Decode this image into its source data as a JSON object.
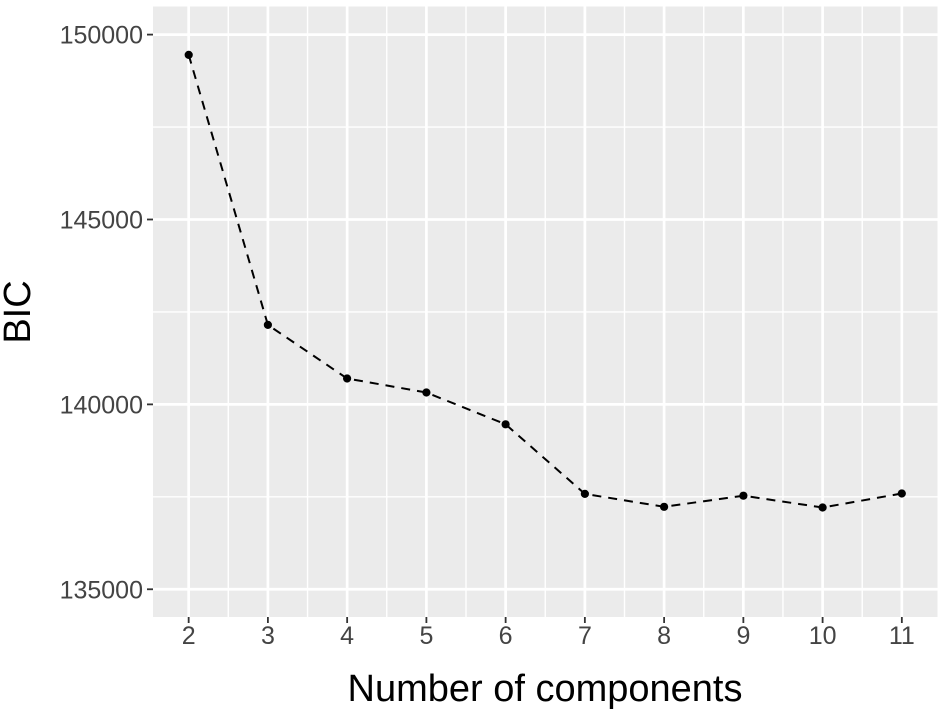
{
  "figure": {
    "background_color": "#FFFFFF",
    "panel_background_color": "#EBEBEB",
    "grid_major_color": "#FFFFFF",
    "grid_minor_color": "#FFFFFF",
    "tick_mark_color": "#333333",
    "tick_label_color": "#444444",
    "axis_title_color": "#000000",
    "line_color": "#000000",
    "point_color": "#000000"
  },
  "chart_data": {
    "type": "line",
    "title": "",
    "xlabel": "Number of components",
    "ylabel": "BIC",
    "x": [
      2,
      3,
      4,
      5,
      6,
      7,
      8,
      9,
      10,
      11
    ],
    "series": [
      {
        "name": "BIC",
        "values": [
          149450,
          142150,
          140700,
          140320,
          139460,
          137580,
          137230,
          137530,
          137210,
          137590
        ]
      }
    ],
    "xticks": [
      2,
      3,
      4,
      5,
      6,
      7,
      8,
      9,
      10,
      11
    ],
    "yticks": [
      135000,
      140000,
      145000,
      150000
    ],
    "xticks_minor": [
      2.5,
      3.5,
      4.5,
      5.5,
      6.5,
      7.5,
      8.5,
      9.5,
      10.5
    ],
    "yticks_minor": [
      137500,
      142500,
      147500
    ],
    "xlim": [
      1.55,
      11.45
    ],
    "ylim": [
      134250,
      150760
    ],
    "grid": "major and minor white gridlines on gray panel (ggplot2 theme_grey)",
    "legend": "none",
    "line_style": "dashed",
    "marker": "filled-circle"
  }
}
